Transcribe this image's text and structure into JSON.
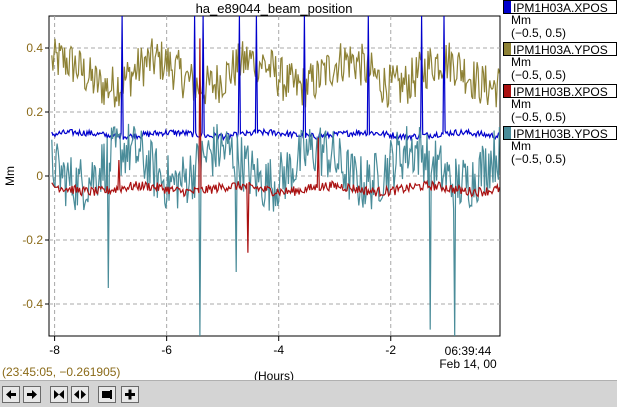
{
  "title": "ha_e89044_beam_position",
  "chart_data": {
    "type": "line",
    "title": "ha_e89044_beam_position",
    "xlabel": "(Hours)",
    "ylabel": "Mm",
    "xlim": [
      -8.1,
      -0.05
    ],
    "ylim": [
      -0.5,
      0.5
    ],
    "x_ticks": [
      -8,
      -6,
      -4,
      -2
    ],
    "x_tick_labels": [
      "-8",
      "-6",
      "-4",
      "-2"
    ],
    "x_end_label": [
      "06:39:44",
      "Feb 14, 00"
    ],
    "y_ticks": [
      0.4,
      0.2,
      0,
      -0.2,
      -0.4
    ],
    "y_tick_labels": [
      "0.4",
      "0.2",
      "0",
      "-0.2",
      "-0.4"
    ],
    "grid": true,
    "legend_position": "right",
    "series": [
      {
        "name": "IPM1H03A.XPOS",
        "unit": "Mm",
        "range": "(−0.5, 0.5)",
        "color": "#0000cc",
        "baseline": 0.13,
        "noise": 0.01,
        "spikes": [
          [
            -6.8,
            0.5
          ],
          [
            -5.5,
            0.5
          ],
          [
            -5.35,
            0.5
          ],
          [
            -4.7,
            0.5
          ],
          [
            -4.4,
            0.5
          ],
          [
            -3.55,
            0.5
          ],
          [
            -2.4,
            0.5
          ],
          [
            -1.45,
            0.5
          ],
          [
            -1.05,
            0.5
          ]
        ]
      },
      {
        "name": "IPM1H03A.YPOS",
        "unit": "Mm",
        "range": "(−0.5, 0.5)",
        "color": "#8e8236",
        "baseline": 0.32,
        "noise": 0.07,
        "spikes": []
      },
      {
        "name": "IPM1H03B.XPOS",
        "unit": "Mm",
        "range": "(−0.5, 0.5)",
        "color": "#aa1111",
        "baseline": -0.04,
        "noise": 0.015,
        "spikes": [
          [
            -6.85,
            0.05
          ],
          [
            -5.4,
            0.43
          ],
          [
            -4.55,
            -0.24
          ],
          [
            -3.3,
            0.12
          ]
        ]
      },
      {
        "name": "IPM1H03B.YPOS",
        "unit": "Mm",
        "range": "(−0.5, 0.5)",
        "color": "#4a8c99",
        "baseline": 0.03,
        "noise": 0.09,
        "spikes": [
          [
            -7.05,
            -0.35
          ],
          [
            -5.4,
            -0.5
          ],
          [
            -4.75,
            -0.3
          ],
          [
            -1.3,
            -0.48
          ],
          [
            -0.85,
            -0.5
          ]
        ]
      }
    ]
  },
  "coord_readout": "(23:45:05, −0.261905)",
  "toolbar": {
    "buttons": [
      {
        "name": "scroll-left-button",
        "icon": "arrow-left-icon"
      },
      {
        "name": "scroll-right-button",
        "icon": "arrow-right-icon"
      },
      {
        "name": "zoom-in-x-button",
        "icon": "bowtie-in-icon"
      },
      {
        "name": "zoom-out-x-button",
        "icon": "bowtie-out-icon"
      },
      {
        "name": "go-end-button",
        "icon": "arrow-to-bar-icon"
      },
      {
        "name": "add-trace-button",
        "icon": "plus-icon"
      }
    ]
  }
}
